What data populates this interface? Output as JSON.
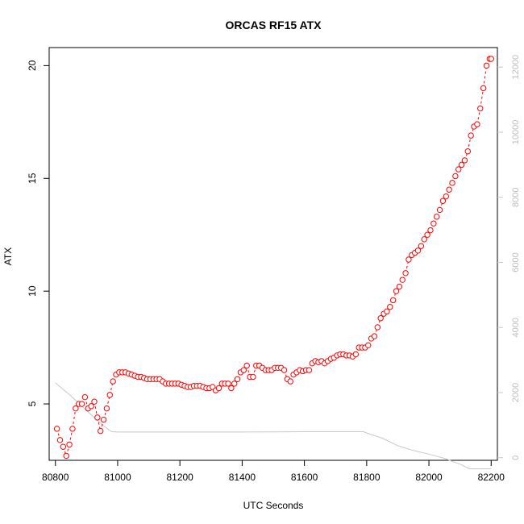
{
  "chart_data": {
    "type": "scatter",
    "title": "ORCAS RF15 ATX",
    "xlabel": "UTC Seconds",
    "ylabel": "ATX",
    "xlim": [
      80780,
      82220
    ],
    "ylim": [
      2.5,
      20.8
    ],
    "xticks": [
      80800,
      81000,
      81200,
      81400,
      81600,
      81800,
      82000,
      82200
    ],
    "yticks": [
      5,
      10,
      15,
      20
    ],
    "y2lim": [
      -80,
      12600
    ],
    "y2ticks": [
      0,
      2000,
      4000,
      6000,
      8000,
      10000,
      12000
    ],
    "grid": false,
    "colors": {
      "series": "#ff0000",
      "secondary": "#c8c8c8"
    },
    "series": [
      {
        "marker": "open-circle",
        "line": "dashed",
        "x": [
          80805,
          80815,
          80825,
          80835,
          80845,
          80855,
          80865,
          80875,
          80885,
          80895,
          80905,
          80915,
          80925,
          80935,
          80945,
          80955,
          80965,
          80975,
          80985,
          80995,
          81005,
          81015,
          81025,
          81035,
          81045,
          81055,
          81065,
          81075,
          81085,
          81095,
          81105,
          81115,
          81125,
          81135,
          81145,
          81155,
          81165,
          81175,
          81185,
          81195,
          81205,
          81215,
          81225,
          81235,
          81245,
          81255,
          81265,
          81275,
          81285,
          81295,
          81305,
          81315,
          81325,
          81335,
          81345,
          81355,
          81365,
          81375,
          81385,
          81395,
          81405,
          81415,
          81425,
          81435,
          81445,
          81455,
          81465,
          81475,
          81485,
          81495,
          81505,
          81515,
          81525,
          81535,
          81545,
          81555,
          81565,
          81575,
          81585,
          81595,
          81605,
          81615,
          81625,
          81635,
          81645,
          81655,
          81665,
          81675,
          81685,
          81695,
          81705,
          81715,
          81725,
          81735,
          81745,
          81755,
          81765,
          81775,
          81785,
          81795,
          81805,
          81815,
          81825,
          81835,
          81845,
          81855,
          81865,
          81875,
          81885,
          81895,
          81905,
          81915,
          81925,
          81935,
          81945,
          81955,
          81965,
          81975,
          81985,
          81995,
          82005,
          82015,
          82025,
          82035,
          82045,
          82055,
          82065,
          82075,
          82085,
          82095,
          82105,
          82115,
          82125,
          82135,
          82145,
          82155,
          82165,
          82175,
          82185,
          82195,
          82200
        ],
        "y": [
          3.9,
          3.4,
          3.1,
          2.7,
          3.2,
          3.9,
          4.8,
          5.0,
          5.0,
          5.3,
          4.8,
          4.9,
          5.1,
          4.4,
          3.8,
          4.3,
          4.8,
          5.4,
          6.0,
          6.3,
          6.4,
          6.4,
          6.4,
          6.35,
          6.3,
          6.25,
          6.2,
          6.2,
          6.15,
          6.1,
          6.1,
          6.1,
          6.1,
          6.1,
          6.0,
          5.9,
          5.9,
          5.9,
          5.9,
          5.9,
          5.85,
          5.8,
          5.75,
          5.75,
          5.8,
          5.8,
          5.8,
          5.75,
          5.7,
          5.7,
          5.75,
          5.6,
          5.7,
          5.9,
          5.9,
          5.9,
          5.7,
          5.9,
          6.1,
          6.4,
          6.5,
          6.7,
          6.2,
          6.2,
          6.7,
          6.7,
          6.6,
          6.5,
          6.5,
          6.5,
          6.6,
          6.6,
          6.6,
          6.5,
          6.1,
          6.0,
          6.3,
          6.4,
          6.5,
          6.45,
          6.5,
          6.5,
          6.8,
          6.9,
          6.85,
          6.9,
          6.8,
          6.9,
          7.0,
          7.05,
          7.15,
          7.2,
          7.2,
          7.15,
          7.15,
          7.1,
          7.2,
          7.5,
          7.5,
          7.5,
          7.6,
          7.9,
          8.0,
          8.4,
          8.8,
          9.0,
          9.1,
          9.3,
          9.6,
          10.0,
          10.2,
          10.5,
          10.8,
          11.4,
          11.6,
          11.7,
          11.8,
          12.0,
          12.3,
          12.5,
          12.7,
          13.0,
          13.3,
          13.6,
          14.0,
          14.2,
          14.5,
          14.8,
          15.1,
          15.4,
          15.6,
          15.8,
          16.2,
          16.9,
          17.3,
          17.4,
          18.1,
          19.0,
          20.0,
          20.3,
          20.3
        ]
      },
      {
        "axis": "right",
        "x": [
          80800,
          80850,
          80900,
          80950,
          80980,
          81000,
          81100,
          81200,
          81300,
          81400,
          81500,
          81600,
          81700,
          81790,
          81800,
          81850,
          81900,
          81950,
          82000,
          82050,
          82100,
          82130,
          82200
        ],
        "y": [
          2300,
          1900,
          1450,
          1020,
          800,
          790,
          790,
          790,
          790,
          790,
          795,
          800,
          800,
          800,
          760,
          600,
          370,
          220,
          110,
          -20,
          -200,
          -340,
          -340
        ]
      }
    ]
  }
}
